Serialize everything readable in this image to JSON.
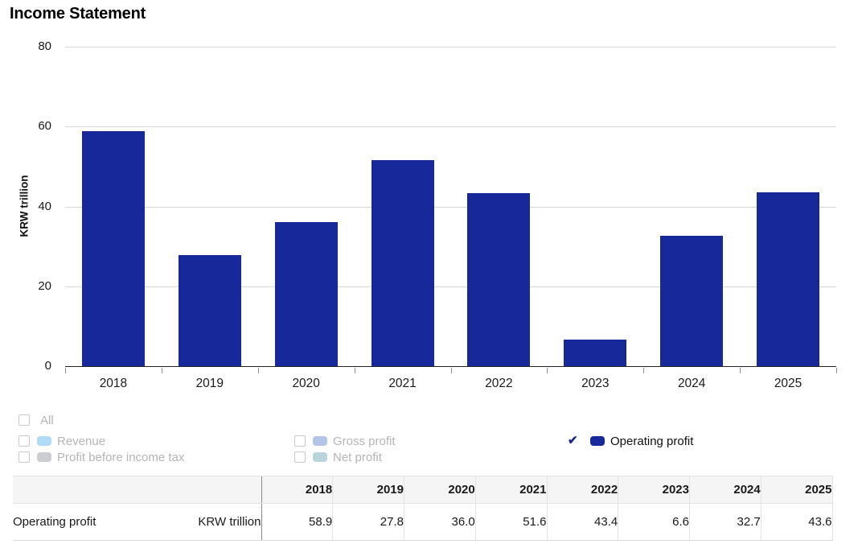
{
  "title": "Income Statement",
  "chart_data": {
    "type": "bar",
    "title": "Income Statement",
    "categories": [
      "2018",
      "2019",
      "2020",
      "2021",
      "2022",
      "2023",
      "2024",
      "2025"
    ],
    "values": [
      58.9,
      27.8,
      36.0,
      51.6,
      43.4,
      6.6,
      32.7,
      43.6
    ],
    "series_name": "Operating profit",
    "xlabel": "",
    "ylabel": "KRW trillion",
    "ylim": [
      0,
      80
    ],
    "yticks": [
      0,
      20,
      40,
      60,
      80
    ],
    "bar_color": "#17289a",
    "grid": true,
    "legend_position": "below"
  },
  "legend": {
    "check_color": "#1b2a8a",
    "items": [
      {
        "id": "all",
        "label": "All",
        "checked": false,
        "swatch": null
      },
      {
        "id": "revenue",
        "label": "Revenue",
        "checked": false,
        "swatch": "#b0dcf7"
      },
      {
        "id": "profit-before-income-tax",
        "label": "Profit before income tax",
        "checked": false,
        "swatch": "#cbcdd0"
      },
      {
        "id": "gross-profit",
        "label": "Gross profit",
        "checked": false,
        "swatch": "#b3c6ea"
      },
      {
        "id": "net-profit",
        "label": "Net profit",
        "checked": false,
        "swatch": "#b7d5db"
      },
      {
        "id": "operating-profit",
        "label": "Operating profit",
        "checked": true,
        "swatch": "#17289a"
      }
    ]
  },
  "table": {
    "year_headers": [
      "2018",
      "2019",
      "2020",
      "2021",
      "2022",
      "2023",
      "2024",
      "2025"
    ],
    "row": {
      "label": "Operating profit",
      "unit": "KRW trillion",
      "values": [
        "58.9",
        "27.8",
        "36.0",
        "51.6",
        "43.4",
        "6.6",
        "32.7",
        "43.6"
      ]
    }
  }
}
